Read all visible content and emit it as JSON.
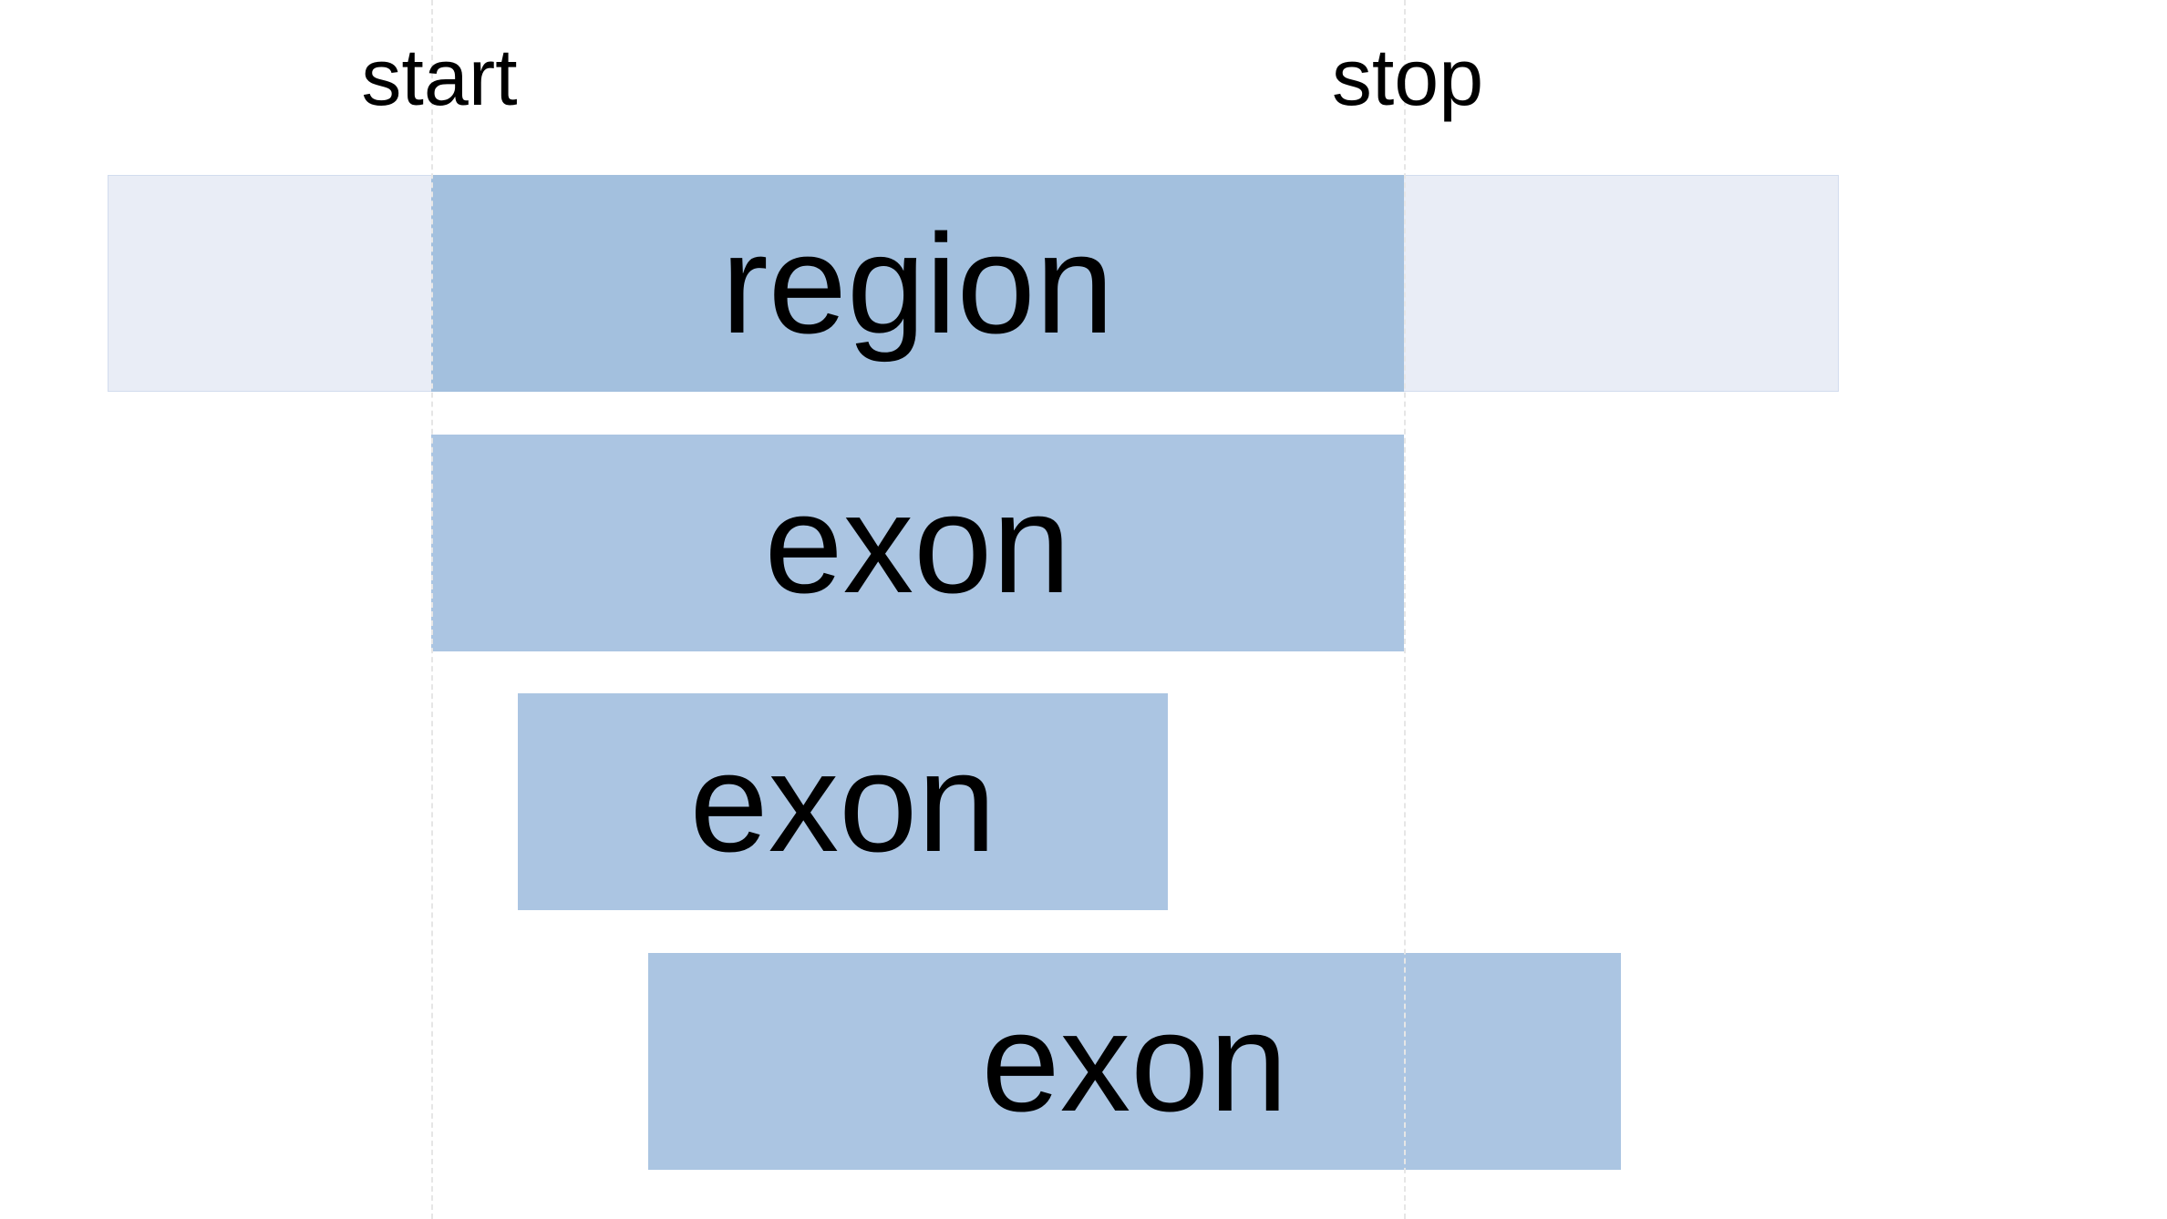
{
  "markers": {
    "start": {
      "label": "start"
    },
    "stop": {
      "label": "stop"
    }
  },
  "region": {
    "label": "region",
    "color": "#a3c0de",
    "extent_color": "#e9edf6"
  },
  "exons": [
    {
      "label": "exon",
      "color": "#abc5e2"
    },
    {
      "label": "exon",
      "color": "#abc5e2"
    },
    {
      "label": "exon",
      "color": "#abc5e2"
    }
  ]
}
